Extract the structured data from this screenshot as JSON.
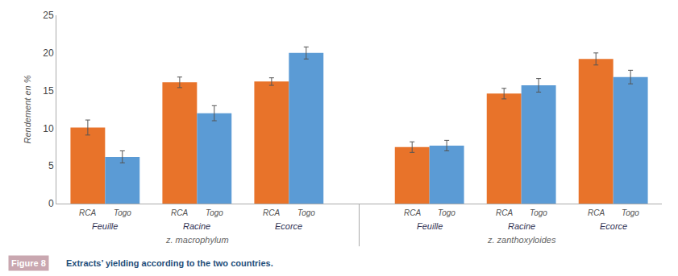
{
  "chart_data": {
    "type": "bar",
    "ylabel": "Rendement en %",
    "categories": [
      "Feuille",
      "Racine",
      "Ecorce",
      "Feuille",
      "Racine",
      "Ecorce"
    ],
    "category_groups": [
      "z. macrophylum",
      "z. macrophylum",
      "z. macrophylum",
      "z. zanthoxyloides",
      "z. zanthoxyloides",
      "z. zanthoxyloides"
    ],
    "series": [
      {
        "name": "RCA",
        "color": "#E8732A",
        "values": [
          10.1,
          16.1,
          16.2,
          7.5,
          14.6,
          19.2
        ],
        "errors": [
          1.0,
          0.7,
          0.5,
          0.7,
          0.7,
          0.8
        ]
      },
      {
        "name": "Togo",
        "color": "#5B9BD5",
        "values": [
          6.2,
          12.0,
          20.0,
          7.7,
          15.7,
          16.8
        ],
        "errors": [
          0.8,
          1.0,
          0.8,
          0.7,
          0.9,
          0.9
        ]
      }
    ],
    "ylim": [
      0,
      25
    ],
    "yticks": [
      0,
      5,
      10,
      15,
      20,
      25
    ],
    "grid": false,
    "caption": {
      "label": "Figure 8",
      "label_color": "#C9A7B0",
      "text": "Extracts’ yielding according to the two countries.",
      "color": "#1F4E79"
    }
  }
}
